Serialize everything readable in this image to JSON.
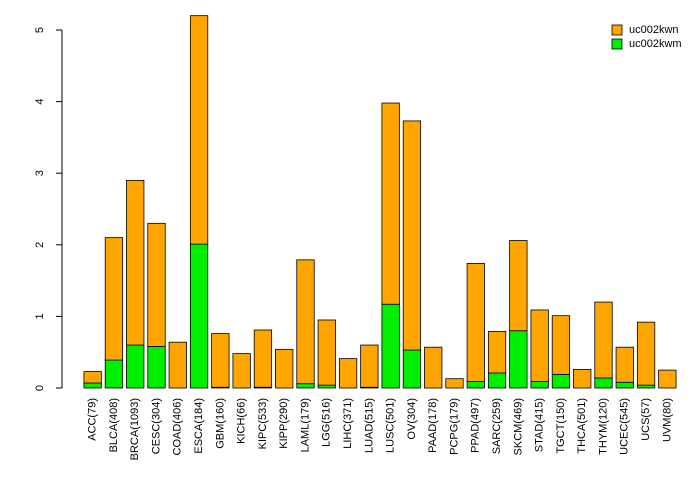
{
  "chart_data": {
    "type": "bar",
    "stacked": true,
    "categories": [
      "ACC(79)",
      "BLCA(408)",
      "BRCA(1093)",
      "CESC(304)",
      "COAD(406)",
      "ESCA(184)",
      "GBM(160)",
      "KICH(66)",
      "KIPC(533)",
      "KIPP(290)",
      "LAML(179)",
      "LGG(516)",
      "LIHC(371)",
      "LUAD(515)",
      "LUSC(501)",
      "OV(304)",
      "PAAD(178)",
      "PCPG(179)",
      "PPAD(497)",
      "SARC(259)",
      "SKCM(469)",
      "STAD(415)",
      "TGCT(150)",
      "THCA(501)",
      "THYM(120)",
      "UCEC(545)",
      "UCS(57)",
      "UVM(80)"
    ],
    "series": [
      {
        "name": "uc002kwm",
        "color": "#00ee00",
        "values": [
          0.07,
          0.39,
          0.6,
          0.58,
          0.0,
          2.01,
          0.01,
          0.0,
          0.01,
          0.0,
          0.06,
          0.04,
          0.0,
          0.01,
          1.17,
          0.53,
          0.0,
          0.0,
          0.09,
          0.21,
          0.8,
          0.09,
          0.19,
          0.0,
          0.14,
          0.08,
          0.04,
          0.0
        ]
      },
      {
        "name": "uc002kwn",
        "color": "#ffa500",
        "values": [
          0.16,
          1.71,
          2.3,
          1.72,
          0.64,
          3.19,
          0.75,
          0.48,
          0.8,
          0.54,
          1.73,
          0.91,
          0.41,
          0.59,
          2.81,
          3.2,
          0.57,
          0.13,
          1.65,
          0.58,
          1.26,
          1.0,
          0.82,
          0.26,
          1.06,
          0.49,
          0.88,
          0.25
        ]
      }
    ],
    "legend": {
      "position": "top-right",
      "entries": [
        {
          "name": "uc002kwn",
          "color": "#ffa500"
        },
        {
          "name": "uc002kwm",
          "color": "#00ee00"
        }
      ]
    },
    "yticks": [
      0,
      1,
      2,
      3,
      4,
      5
    ],
    "ylim": [
      0,
      5.2
    ],
    "title": "",
    "xlabel": "",
    "ylabel": "",
    "grid": false
  }
}
